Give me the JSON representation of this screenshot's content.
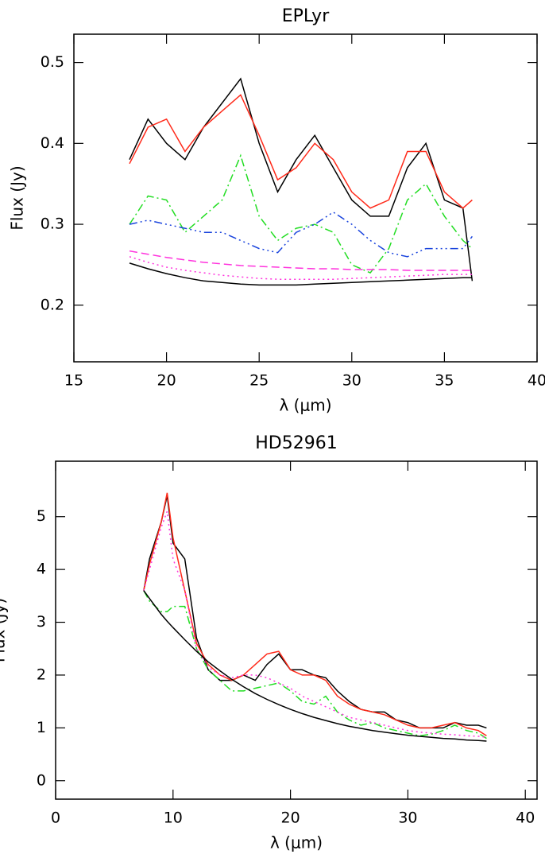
{
  "chart_data": [
    {
      "type": "line",
      "title": "EPLyr",
      "x_label": "λ (μm)",
      "y_label": "Flux (Jy)",
      "x": [
        18,
        19,
        20,
        21,
        22,
        23,
        24,
        25,
        26,
        27,
        28,
        29,
        30,
        31,
        32,
        33,
        34,
        35,
        36,
        36.5
      ],
      "series": [
        {
          "color": "#000000",
          "dash": "solid",
          "values": [
            0.38,
            0.43,
            0.4,
            0.38,
            0.42,
            0.45,
            0.48,
            0.4,
            0.34,
            0.38,
            0.41,
            0.37,
            0.33,
            0.31,
            0.31,
            0.37,
            0.4,
            0.33,
            0.32,
            0.23
          ]
        },
        {
          "color": "#ff2a1a",
          "dash": "solid",
          "values": [
            0.375,
            0.42,
            0.43,
            0.39,
            0.42,
            0.44,
            0.46,
            0.41,
            0.355,
            0.37,
            0.4,
            0.38,
            0.34,
            0.32,
            0.33,
            0.39,
            0.39,
            0.34,
            0.32,
            0.33
          ]
        },
        {
          "color": "#22dd22",
          "dash": "dashdot",
          "values": [
            0.3,
            0.335,
            0.33,
            0.29,
            0.31,
            0.33,
            0.385,
            0.31,
            0.28,
            0.295,
            0.3,
            0.29,
            0.25,
            0.24,
            0.27,
            0.33,
            0.35,
            0.31,
            0.28,
            0.27
          ]
        },
        {
          "color": "#1a44dd",
          "dash": "dashdotdot",
          "values": [
            0.3,
            0.305,
            0.3,
            0.295,
            0.29,
            0.29,
            0.28,
            0.27,
            0.265,
            0.29,
            0.3,
            0.315,
            0.3,
            0.28,
            0.265,
            0.26,
            0.27,
            0.27,
            0.27,
            0.285
          ]
        },
        {
          "color": "#ff33dd",
          "dash": "dashed",
          "values": [
            0.267,
            0.263,
            0.259,
            0.256,
            0.253,
            0.251,
            0.249,
            0.248,
            0.247,
            0.246,
            0.245,
            0.245,
            0.244,
            0.244,
            0.244,
            0.243,
            0.243,
            0.243,
            0.243,
            0.243
          ]
        },
        {
          "color": "#ff33dd",
          "dash": "dotted",
          "values": [
            0.26,
            0.253,
            0.247,
            0.243,
            0.24,
            0.237,
            0.235,
            0.233,
            0.232,
            0.232,
            0.232,
            0.232,
            0.233,
            0.234,
            0.235,
            0.236,
            0.237,
            0.238,
            0.238,
            0.238
          ]
        },
        {
          "color": "#000000",
          "dash": "solid",
          "values": [
            0.252,
            0.245,
            0.239,
            0.234,
            0.23,
            0.228,
            0.226,
            0.225,
            0.225,
            0.225,
            0.226,
            0.227,
            0.228,
            0.229,
            0.23,
            0.231,
            0.232,
            0.233,
            0.234,
            0.234
          ]
        }
      ],
      "xlim": [
        15,
        40
      ],
      "xticks": [
        15,
        20,
        25,
        30,
        35,
        40
      ],
      "ylim": [
        0.13,
        0.535
      ],
      "yticks": [
        0.2,
        0.3,
        0.4,
        0.5
      ]
    },
    {
      "type": "line",
      "title": "HD52961",
      "x_label": "λ (μm)",
      "y_label": "Flux (Jy)",
      "x": [
        7.5,
        8,
        9,
        9.5,
        10,
        11,
        12,
        13,
        14,
        15,
        16,
        17,
        18,
        19,
        20,
        21,
        22,
        23,
        24,
        25,
        26,
        27,
        28,
        29,
        30,
        31,
        32,
        33,
        34,
        35,
        36,
        36.7
      ],
      "series": [
        {
          "color": "#000000",
          "dash": "solid",
          "values": [
            3.6,
            4.2,
            4.9,
            5.4,
            4.5,
            4.2,
            2.7,
            2.1,
            1.9,
            1.9,
            2.0,
            1.9,
            2.2,
            2.4,
            2.1,
            2.1,
            2.0,
            1.95,
            1.7,
            1.5,
            1.35,
            1.3,
            1.3,
            1.15,
            1.1,
            1.0,
            1.0,
            1.0,
            1.1,
            1.05,
            1.05,
            1.0
          ]
        },
        {
          "color": "#ff2a1a",
          "dash": "solid",
          "values": [
            3.6,
            4.1,
            4.9,
            5.45,
            4.6,
            3.6,
            2.6,
            2.2,
            2.0,
            1.9,
            2.0,
            2.2,
            2.4,
            2.45,
            2.1,
            2.0,
            2.0,
            1.9,
            1.6,
            1.45,
            1.35,
            1.3,
            1.25,
            1.15,
            1.05,
            1.0,
            1.0,
            1.05,
            1.1,
            1.0,
            0.95,
            0.85
          ]
        },
        {
          "color": "#22dd22",
          "dash": "dashdot",
          "values": [
            3.6,
            3.4,
            3.2,
            3.2,
            3.3,
            3.3,
            2.5,
            2.1,
            1.9,
            1.7,
            1.7,
            1.75,
            1.8,
            1.85,
            1.7,
            1.5,
            1.45,
            1.6,
            1.3,
            1.15,
            1.05,
            1.1,
            1.0,
            0.95,
            0.9,
            0.85,
            0.88,
            0.95,
            1.05,
            0.95,
            0.9,
            0.8
          ]
        },
        {
          "color": "#ff33dd",
          "dash": "dotted",
          "values": [
            3.6,
            4.0,
            4.8,
            5.1,
            4.2,
            3.6,
            2.5,
            2.15,
            2.0,
            1.95,
            2.0,
            2.0,
            1.95,
            1.85,
            1.75,
            1.6,
            1.5,
            1.4,
            1.3,
            1.2,
            1.15,
            1.1,
            1.05,
            1.0,
            0.95,
            0.92,
            0.9,
            0.88,
            0.87,
            0.85,
            0.84,
            0.82
          ]
        },
        {
          "color": "#000000",
          "dash": "solid",
          "values": [
            3.6,
            3.45,
            3.15,
            3.02,
            2.9,
            2.67,
            2.45,
            2.25,
            2.08,
            1.92,
            1.78,
            1.65,
            1.54,
            1.44,
            1.35,
            1.27,
            1.2,
            1.14,
            1.08,
            1.03,
            0.99,
            0.95,
            0.92,
            0.89,
            0.86,
            0.84,
            0.82,
            0.8,
            0.79,
            0.77,
            0.76,
            0.75
          ]
        }
      ],
      "xlim": [
        0,
        41
      ],
      "xticks": [
        0,
        10,
        20,
        30,
        40
      ],
      "ylim": [
        -0.35,
        6.05
      ],
      "yticks": [
        0,
        1,
        2,
        3,
        4,
        5
      ]
    }
  ]
}
